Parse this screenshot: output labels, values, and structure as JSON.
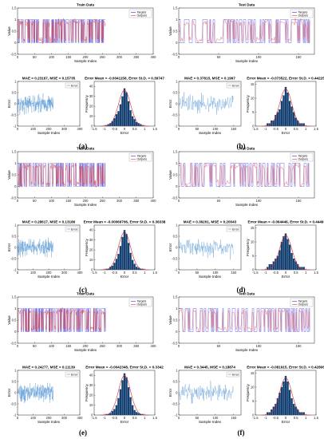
{
  "figure": {
    "panels": [
      {
        "label": "(a)",
        "train": {
          "title": "Train Data",
          "xlabel": "Sample Index",
          "ylabel": "Value",
          "xticks": [
            0,
            50,
            100,
            150,
            200,
            250,
            300,
            350,
            400
          ],
          "yticks": [
            -0.5,
            0,
            0.5,
            1,
            1.5
          ]
        },
        "test": {
          "title": "Test Data",
          "xlabel": "Sample Index",
          "ylabel": "Value",
          "xticks": [
            0,
            50,
            100,
            150
          ],
          "yticks": [
            -0.5,
            0,
            0.5,
            1,
            1.5
          ]
        },
        "train_err": {
          "title": "MAE = 0.23167, MSE = 0.15735",
          "xlabel": "Sample Index",
          "ylabel": "Error",
          "xticks": [
            0,
            100,
            200,
            300,
            400
          ],
          "yticks": [
            -1,
            -0.5,
            0,
            0.5,
            1
          ]
        },
        "train_hist": {
          "title": "Error Mean = -0.0041158, Error St.D. = 0.39747",
          "xlabel": "Error",
          "ylabel": "Frequency",
          "xticks": [
            -1.5,
            -1,
            -0.5,
            0,
            0.5,
            1,
            1.5
          ],
          "yticks": [
            0,
            10,
            20,
            30,
            40
          ]
        },
        "test_err": {
          "title": "MAE = 0.37815, MSE = 0.1997",
          "xlabel": "Sample Index",
          "ylabel": "Error",
          "xticks": [
            0,
            50,
            100,
            150
          ],
          "yticks": [
            -1,
            -0.5,
            0,
            0.5,
            1
          ]
        },
        "test_hist": {
          "title": "Error Mean = -0.073522, Error St.D. = 0.44225",
          "xlabel": "Error",
          "ylabel": "Frequency",
          "xticks": [
            -1.5,
            -1,
            -0.5,
            0,
            0.5,
            1,
            1.5
          ],
          "yticks": [
            0,
            5,
            10,
            15
          ]
        }
      },
      {
        "label": "(b)"
      },
      {
        "label": "(c)",
        "train": {
          "title": "Train Data",
          "xlabel": "Sample Index",
          "ylabel": "Value",
          "xticks": [
            0,
            50,
            100,
            150,
            200,
            250,
            300,
            350,
            400
          ],
          "yticks": [
            -0.5,
            0,
            0.5,
            1,
            1.5
          ]
        },
        "test": {
          "title": "Test Data",
          "xlabel": "Sample Index",
          "ylabel": "Value",
          "xticks": [
            0,
            50,
            100,
            150
          ],
          "yticks": [
            -0.5,
            0,
            0.5,
            1,
            1.5
          ]
        },
        "train_err": {
          "title": "MAE = 0.28617, MSE = 0.13186",
          "xlabel": "Sample Index",
          "ylabel": "Error",
          "xticks": [
            0,
            100,
            200,
            300,
            400
          ],
          "yticks": [
            -1,
            -0.5,
            0,
            0.5,
            1
          ]
        },
        "train_hist": {
          "title": "Error Mean = -0.00069706, Error St.D. = 0.36338",
          "xlabel": "Error",
          "ylabel": "Frequency",
          "xticks": [
            -1.5,
            -1,
            -0.5,
            0,
            0.5,
            1,
            1.5
          ],
          "yticks": [
            0,
            10,
            20,
            30,
            40
          ]
        },
        "test_err": {
          "title": "MAE = 0.36201, MSE = 0.20043",
          "xlabel": "Sample Index",
          "ylabel": "Error",
          "xticks": [
            0,
            50,
            100,
            150
          ],
          "yticks": [
            -1,
            -0.5,
            0,
            0.5,
            1
          ]
        },
        "test_hist": {
          "title": "Error Mean = -0.064446, Error St.D. = 0.4449",
          "xlabel": "Error",
          "ylabel": "Frequency",
          "xticks": [
            -1.5,
            -1,
            -0.5,
            0,
            0.5,
            1,
            1.5
          ],
          "yticks": [
            0,
            5,
            10,
            15
          ]
        }
      },
      {
        "label": "(d)"
      },
      {
        "label": "(e)",
        "train": {
          "title": "Train Data",
          "xlabel": "Sample Index",
          "ylabel": "Value",
          "xticks": [
            0,
            50,
            100,
            150,
            200,
            250,
            300,
            350,
            400
          ],
          "yticks": [
            -0.5,
            0,
            0.5,
            1,
            1.5
          ]
        },
        "test": {
          "title": "Test Data",
          "xlabel": "Sample Index",
          "ylabel": "Value",
          "xticks": [
            0,
            50,
            100,
            150
          ],
          "yticks": [
            -0.5,
            0,
            0.5,
            1,
            1.5
          ]
        },
        "train_err": {
          "title": "MAE = 0.24277, MSE = 0.11139",
          "xlabel": "Sample Index",
          "ylabel": "Error",
          "xticks": [
            0,
            100,
            200,
            300,
            400
          ],
          "yticks": [
            -1,
            -0.5,
            0,
            0.5,
            1
          ]
        },
        "train_hist": {
          "title": "Error Mean = -0.0042348, Error St.D. = 0.3342",
          "xlabel": "Error",
          "ylabel": "Frequency",
          "xticks": [
            -1.5,
            -1,
            -0.5,
            0,
            0.5,
            1,
            1.5
          ],
          "yticks": [
            0,
            10,
            20,
            30,
            40
          ]
        },
        "test_err": {
          "title": "MAE = 0.3445, MSE = 0.18874",
          "xlabel": "Sample Index",
          "ylabel": "Error",
          "xticks": [
            0,
            50,
            100,
            150
          ],
          "yticks": [
            -1,
            -0.5,
            0,
            0.5,
            1
          ]
        },
        "test_hist": {
          "title": "Error Mean = -0.081915, Error St.D. = 0.42806",
          "xlabel": "Error",
          "ylabel": "Frequency",
          "xticks": [
            -1.5,
            -1,
            -0.5,
            0,
            0.5,
            1,
            1.5
          ],
          "yticks": [
            0,
            5,
            10,
            15
          ]
        }
      },
      {
        "label": "(f)"
      }
    ],
    "legend": {
      "target": "Targets",
      "output": "Outputs",
      "error": "Error"
    }
  },
  "colors": {
    "target": "#2b2bd6",
    "output": "#e04040",
    "error": "#4a8fd0",
    "hist": "#17406e",
    "fit": "#d62c2c",
    "axis": "#222222"
  },
  "chart_data": [
    {
      "type": "line",
      "panel": "(a)",
      "title": "Train Data",
      "xlabel": "Sample Index",
      "ylabel": "Value",
      "xlim": [
        0,
        400
      ],
      "ylim": [
        -0.5,
        1.5
      ],
      "series": [
        {
          "name": "Targets",
          "pattern": "binary 0/1 square wave"
        },
        {
          "name": "Outputs",
          "pattern": "continuous prediction between 0 and 1"
        }
      ]
    },
    {
      "type": "line",
      "panel": "(b)",
      "title": "Test Data",
      "xlabel": "Sample Index",
      "ylabel": "Value",
      "xlim": [
        0,
        170
      ],
      "ylim": [
        -0.5,
        1.5
      ],
      "series": [
        {
          "name": "Targets"
        },
        {
          "name": "Outputs"
        }
      ]
    },
    {
      "type": "line",
      "panel": "(a)",
      "title": "MAE = 0.23167, MSE = 0.15735",
      "xlabel": "Sample Index",
      "ylabel": "Error",
      "xlim": [
        0,
        400
      ],
      "ylim": [
        -1,
        1
      ],
      "series": [
        {
          "name": "Error"
        }
      ]
    },
    {
      "type": "bar",
      "panel": "(a)",
      "title": "Error Mean = -0.0041158, Error St.D. = 0.39747",
      "xlabel": "Error",
      "ylabel": "Frequency",
      "xlim": [
        -1.5,
        1.5
      ],
      "ylim": [
        0,
        45
      ],
      "x": [
        -0.9,
        -0.8,
        -0.7,
        -0.6,
        -0.5,
        -0.4,
        -0.3,
        -0.2,
        -0.1,
        0.0,
        0.1,
        0.2,
        0.3,
        0.4,
        0.5,
        0.6,
        0.7,
        0.8,
        0.9
      ],
      "values": [
        1,
        2,
        3,
        5,
        8,
        12,
        15,
        22,
        30,
        38,
        34,
        25,
        16,
        10,
        7,
        4,
        3,
        2,
        1
      ]
    },
    {
      "type": "line",
      "panel": "(b)",
      "title": "MAE = 0.37815, MSE = 0.1997",
      "xlabel": "Sample Index",
      "ylabel": "Error",
      "xlim": [
        0,
        170
      ],
      "ylim": [
        -1,
        1
      ],
      "series": [
        {
          "name": "Error"
        }
      ]
    },
    {
      "type": "bar",
      "panel": "(b)",
      "title": "Error Mean = -0.073522, Error St.D. = 0.44225",
      "xlabel": "Error",
      "ylabel": "Frequency",
      "xlim": [
        -1.5,
        1.5
      ],
      "ylim": [
        0,
        16
      ],
      "x": [
        -0.9,
        -0.8,
        -0.7,
        -0.6,
        -0.5,
        -0.4,
        -0.3,
        -0.2,
        -0.1,
        0.0,
        0.1,
        0.2,
        0.3,
        0.4,
        0.5,
        0.6,
        0.7,
        0.8,
        0.9
      ],
      "values": [
        1,
        1,
        2,
        2,
        4,
        5,
        6,
        9,
        11,
        14,
        12,
        9,
        7,
        5,
        3,
        2,
        1,
        1,
        1
      ]
    },
    {
      "type": "line",
      "panel": "(c)",
      "title": "Train Data",
      "xlabel": "Sample Index",
      "ylabel": "Value",
      "xlim": [
        0,
        400
      ],
      "ylim": [
        -0.5,
        1.5
      ],
      "series": [
        {
          "name": "Targets"
        },
        {
          "name": "Outputs"
        }
      ]
    },
    {
      "type": "line",
      "panel": "(d)",
      "title": "Test Data",
      "xlabel": "Sample Index",
      "ylabel": "Value",
      "xlim": [
        0,
        170
      ],
      "ylim": [
        -0.5,
        1.5
      ],
      "series": [
        {
          "name": "Targets"
        },
        {
          "name": "Outputs"
        }
      ]
    },
    {
      "type": "line",
      "panel": "(c)",
      "title": "MAE = 0.28617, MSE = 0.13186",
      "xlabel": "Sample Index",
      "ylabel": "Error",
      "xlim": [
        0,
        400
      ],
      "ylim": [
        -1,
        1
      ],
      "series": [
        {
          "name": "Error"
        }
      ]
    },
    {
      "type": "bar",
      "panel": "(c)",
      "title": "Error Mean = -0.00069706, Error St.D. = 0.36338",
      "xlabel": "Error",
      "ylabel": "Frequency",
      "xlim": [
        -1.5,
        1.5
      ],
      "ylim": [
        0,
        45
      ],
      "x": [
        -0.9,
        -0.8,
        -0.7,
        -0.6,
        -0.5,
        -0.4,
        -0.3,
        -0.2,
        -0.1,
        0.0,
        0.1,
        0.2,
        0.3,
        0.4,
        0.5,
        0.6,
        0.7,
        0.8,
        0.9
      ],
      "values": [
        1,
        1,
        3,
        4,
        7,
        11,
        16,
        24,
        33,
        40,
        36,
        27,
        17,
        10,
        6,
        3,
        2,
        1,
        1
      ]
    },
    {
      "type": "line",
      "panel": "(d)",
      "title": "MAE = 0.36201, MSE = 0.20043",
      "xlabel": "Sample Index",
      "ylabel": "Error",
      "xlim": [
        0,
        170
      ],
      "ylim": [
        -1,
        1
      ],
      "series": [
        {
          "name": "Error"
        }
      ]
    },
    {
      "type": "bar",
      "panel": "(d)",
      "title": "Error Mean = -0.064446, Error St.D. = 0.4449",
      "xlabel": "Error",
      "ylabel": "Frequency",
      "xlim": [
        -1.5,
        1.5
      ],
      "ylim": [
        0,
        16
      ],
      "x": [
        -0.9,
        -0.8,
        -0.7,
        -0.6,
        -0.5,
        -0.4,
        -0.3,
        -0.2,
        -0.1,
        0.0,
        0.1,
        0.2,
        0.3,
        0.4,
        0.5,
        0.6,
        0.7,
        0.8,
        0.9
      ],
      "values": [
        1,
        2,
        2,
        3,
        4,
        5,
        7,
        10,
        12,
        13,
        11,
        9,
        6,
        4,
        3,
        2,
        1,
        1,
        1
      ]
    },
    {
      "type": "line",
      "panel": "(e)",
      "title": "Train Data",
      "xlabel": "Sample Index",
      "ylabel": "Value",
      "xlim": [
        0,
        400
      ],
      "ylim": [
        -0.5,
        1.5
      ],
      "series": [
        {
          "name": "Targets"
        },
        {
          "name": "Outputs"
        }
      ]
    },
    {
      "type": "line",
      "panel": "(f)",
      "title": "Test Data",
      "xlabel": "Sample Index",
      "ylabel": "Value",
      "xlim": [
        0,
        170
      ],
      "ylim": [
        -0.5,
        1.5
      ],
      "series": [
        {
          "name": "Targets"
        },
        {
          "name": "Outputs"
        }
      ]
    },
    {
      "type": "line",
      "panel": "(e)",
      "title": "MAE = 0.24277, MSE = 0.11139",
      "xlabel": "Sample Index",
      "ylabel": "Error",
      "xlim": [
        0,
        400
      ],
      "ylim": [
        -1,
        1
      ],
      "series": [
        {
          "name": "Error"
        }
      ]
    },
    {
      "type": "bar",
      "panel": "(e)",
      "title": "Error Mean = -0.0042348, Error St.D. = 0.3342",
      "xlabel": "Error",
      "ylabel": "Frequency",
      "xlim": [
        -1.5,
        1.5
      ],
      "ylim": [
        0,
        45
      ],
      "x": [
        -0.9,
        -0.8,
        -0.7,
        -0.6,
        -0.5,
        -0.4,
        -0.3,
        -0.2,
        -0.1,
        0.0,
        0.1,
        0.2,
        0.3,
        0.4,
        0.5,
        0.6,
        0.7,
        0.8,
        0.9
      ],
      "values": [
        1,
        1,
        2,
        4,
        6,
        10,
        17,
        26,
        35,
        42,
        38,
        28,
        18,
        10,
        5,
        3,
        2,
        1,
        1
      ]
    },
    {
      "type": "line",
      "panel": "(f)",
      "title": "MAE = 0.3445, MSE = 0.18874",
      "xlabel": "Sample Index",
      "ylabel": "Error",
      "xlim": [
        0,
        170
      ],
      "ylim": [
        -1,
        1
      ],
      "series": [
        {
          "name": "Error"
        }
      ]
    },
    {
      "type": "bar",
      "panel": "(f)",
      "title": "Error Mean = -0.081915, Error St.D. = 0.42806",
      "xlabel": "Error",
      "ylabel": "Frequency",
      "xlim": [
        -1.5,
        1.5
      ],
      "ylim": [
        0,
        16
      ],
      "x": [
        -0.9,
        -0.8,
        -0.7,
        -0.6,
        -0.5,
        -0.4,
        -0.3,
        -0.2,
        -0.1,
        0.0,
        0.1,
        0.2,
        0.3,
        0.4,
        0.5,
        0.6,
        0.7,
        0.8,
        0.9
      ],
      "values": [
        1,
        1,
        2,
        3,
        4,
        6,
        8,
        10,
        12,
        14,
        12,
        9,
        6,
        4,
        3,
        2,
        1,
        1,
        1
      ]
    }
  ]
}
